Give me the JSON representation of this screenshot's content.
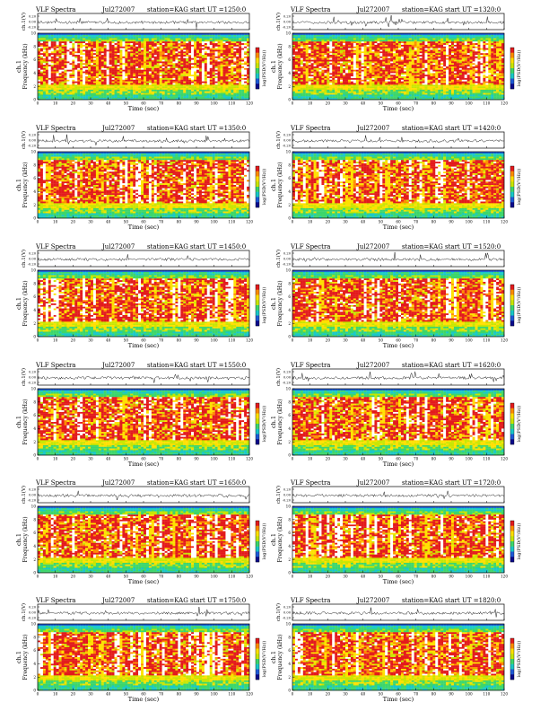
{
  "page": {
    "colors": {
      "background": "#ffffff",
      "colormap": [
        "#ffffff",
        "#e31a1c",
        "#ff8c00",
        "#ffe000",
        "#c8e600",
        "#3cd66b",
        "#18c8c8",
        "#1e5ad8",
        "#0a0a8c"
      ]
    }
  },
  "chart_data": [
    {
      "type": "heatmap",
      "title_left": "VLF Spectra",
      "date": "Jul272007",
      "station": "station=KAG",
      "start": "start  UT =1250:0",
      "xlabel": "Time  (sec)",
      "ylabel": "Frequency (kHz)",
      "ts_ylabel": "ch.1(V)",
      "ch_label": "ch.1",
      "cb_label": "log(PSD(V²/Hz))",
      "xlim": [
        0,
        120
      ],
      "ylim": [
        0,
        10
      ],
      "xticks": [
        "0",
        "10",
        "20",
        "30",
        "40",
        "50",
        "60",
        "70",
        "80",
        "90",
        "100",
        "110",
        "120"
      ],
      "yticks": [
        "0",
        "2",
        "4",
        "6",
        "8",
        "10"
      ],
      "ts_ticks": [
        "0.20",
        "0.00",
        "-0.20"
      ]
    },
    {
      "type": "heatmap",
      "title_left": "VLF Spectra",
      "date": "Jul272007",
      "station": "station=KAG",
      "start": "start  UT =1320:0",
      "xlabel": "Time  (sec)",
      "ylabel": "Frequency (kHz)",
      "ts_ylabel": "ch.1(V)",
      "ch_label": "ch.1",
      "cb_label": "log(PSD(V²/Hz))",
      "xlim": [
        0,
        120
      ],
      "ylim": [
        0,
        10
      ],
      "xticks": [
        "0",
        "10",
        "20",
        "30",
        "40",
        "50",
        "60",
        "70",
        "80",
        "90",
        "100",
        "110",
        "120"
      ],
      "yticks": [
        "0",
        "2",
        "4",
        "6",
        "8",
        "10"
      ],
      "ts_ticks": [
        "0.20",
        "0.00",
        "-0.20"
      ]
    },
    {
      "type": "heatmap",
      "title_left": "VLF Spectra",
      "date": "Jul272007",
      "station": "station=KAG",
      "start": "start  UT =1350:0",
      "xlabel": "Time  (sec)",
      "ylabel": "Frequency (kHz)",
      "ts_ylabel": "ch.1(V)",
      "ch_label": "ch.1",
      "cb_label": "log(PSD(V²/Hz))",
      "xlim": [
        0,
        120
      ],
      "ylim": [
        0,
        10
      ],
      "xticks": [
        "0",
        "10",
        "20",
        "30",
        "40",
        "50",
        "60",
        "70",
        "80",
        "90",
        "100",
        "110",
        "120"
      ],
      "yticks": [
        "0",
        "2",
        "4",
        "6",
        "8",
        "10"
      ],
      "ts_ticks": [
        "0.20",
        "0.00",
        "-0.20"
      ]
    },
    {
      "type": "heatmap",
      "title_left": "VLF Spectra",
      "date": "Jul272007",
      "station": "station=KAG",
      "start": "start  UT =1420:0",
      "xlabel": "Time  (sec)",
      "ylabel": "Frequency (kHz)",
      "ts_ylabel": "ch.1(V)",
      "ch_label": "ch.1",
      "cb_label": "log(PSD(V²/Hz))",
      "xlim": [
        0,
        120
      ],
      "ylim": [
        0,
        10
      ],
      "xticks": [
        "0",
        "10",
        "20",
        "30",
        "40",
        "50",
        "60",
        "70",
        "80",
        "90",
        "100",
        "110",
        "120"
      ],
      "yticks": [
        "0",
        "2",
        "4",
        "6",
        "8",
        "10"
      ],
      "ts_ticks": [
        "0.20",
        "0.00",
        "-0.20"
      ]
    },
    {
      "type": "heatmap",
      "title_left": "VLF Spectra",
      "date": "Jul272007",
      "station": "station=KAG",
      "start": "start  UT =1450:0",
      "xlabel": "Time  (sec)",
      "ylabel": "Frequency (kHz)",
      "ts_ylabel": "ch.1(V)",
      "ch_label": "ch.1",
      "cb_label": "log(PSD(V²/Hz))",
      "xlim": [
        0,
        120
      ],
      "ylim": [
        0,
        10
      ],
      "xticks": [
        "0",
        "10",
        "20",
        "30",
        "40",
        "50",
        "60",
        "70",
        "80",
        "90",
        "100",
        "110",
        "120"
      ],
      "yticks": [
        "0",
        "2",
        "4",
        "6",
        "8",
        "10"
      ],
      "ts_ticks": [
        "0.20",
        "0.00",
        "-0.20"
      ]
    },
    {
      "type": "heatmap",
      "title_left": "VLF Spectra",
      "date": "Jul272007",
      "station": "station=KAG",
      "start": "start  UT =1520:0",
      "xlabel": "Time  (sec)",
      "ylabel": "Frequency (kHz)",
      "ts_ylabel": "ch.1(V)",
      "ch_label": "ch.1",
      "cb_label": "log(PSD(V²/Hz))",
      "xlim": [
        0,
        120
      ],
      "ylim": [
        0,
        10
      ],
      "xticks": [
        "0",
        "10",
        "20",
        "30",
        "40",
        "50",
        "60",
        "70",
        "80",
        "90",
        "100",
        "110",
        "120"
      ],
      "yticks": [
        "0",
        "2",
        "4",
        "6",
        "8",
        "10"
      ],
      "ts_ticks": [
        "0.20",
        "0.00",
        "-0.20"
      ]
    },
    {
      "type": "heatmap",
      "title_left": "VLF Spectra",
      "date": "Jul272007",
      "station": "station=KAG",
      "start": "start  UT =1550:0",
      "xlabel": "Time  (sec)",
      "ylabel": "Frequency (kHz)",
      "ts_ylabel": "ch.1(V)",
      "ch_label": "ch.1",
      "cb_label": "log(PSD(V²/Hz))",
      "xlim": [
        0,
        120
      ],
      "ylim": [
        0,
        10
      ],
      "xticks": [
        "0",
        "10",
        "20",
        "30",
        "40",
        "50",
        "60",
        "70",
        "80",
        "90",
        "100",
        "110",
        "120"
      ],
      "yticks": [
        "0",
        "2",
        "4",
        "6",
        "8",
        "10"
      ],
      "ts_ticks": [
        "0.20",
        "0.00",
        "-0.20"
      ]
    },
    {
      "type": "heatmap",
      "title_left": "VLF Spectra",
      "date": "Jul272007",
      "station": "station=KAG",
      "start": "start  UT =1620:0",
      "xlabel": "Time  (sec)",
      "ylabel": "Frequency (kHz)",
      "ts_ylabel": "ch.1(V)",
      "ch_label": "ch.1",
      "cb_label": "log(PSD(V²/Hz))",
      "xlim": [
        0,
        120
      ],
      "ylim": [
        0,
        10
      ],
      "xticks": [
        "0",
        "10",
        "20",
        "30",
        "40",
        "50",
        "60",
        "70",
        "80",
        "90",
        "100",
        "110",
        "120"
      ],
      "yticks": [
        "0",
        "2",
        "4",
        "6",
        "8",
        "10"
      ],
      "ts_ticks": [
        "0.20",
        "0.00",
        "-0.20"
      ]
    },
    {
      "type": "heatmap",
      "title_left": "VLF Spectra",
      "date": "Jul272007",
      "station": "station=KAG",
      "start": "start  UT =1650:0",
      "xlabel": "Time  (sec)",
      "ylabel": "Frequency (kHz)",
      "ts_ylabel": "ch.1(V)",
      "ch_label": "ch.1",
      "cb_label": "log(PSD(V²/Hz))",
      "xlim": [
        0,
        120
      ],
      "ylim": [
        0,
        10
      ],
      "xticks": [
        "0",
        "10",
        "20",
        "30",
        "40",
        "50",
        "60",
        "70",
        "80",
        "90",
        "100",
        "110",
        "120"
      ],
      "yticks": [
        "0",
        "2",
        "4",
        "6",
        "8",
        "10"
      ],
      "ts_ticks": [
        "0.20",
        "0.00",
        "-0.20"
      ]
    },
    {
      "type": "heatmap",
      "title_left": "VLF Spectra",
      "date": "Jul272007",
      "station": "station=KAG",
      "start": "start  UT =1720:0",
      "xlabel": "Time  (sec)",
      "ylabel": "Frequency (kHz)",
      "ts_ylabel": "ch.1(V)",
      "ch_label": "ch.1",
      "cb_label": "log(PSD(V²/Hz))",
      "xlim": [
        0,
        120
      ],
      "ylim": [
        0,
        10
      ],
      "xticks": [
        "0",
        "10",
        "20",
        "30",
        "40",
        "50",
        "60",
        "70",
        "80",
        "90",
        "100",
        "110",
        "120"
      ],
      "yticks": [
        "0",
        "2",
        "4",
        "6",
        "8",
        "10"
      ],
      "ts_ticks": [
        "0.20",
        "0.00",
        "-0.20"
      ]
    },
    {
      "type": "heatmap",
      "title_left": "VLF Spectra",
      "date": "Jul272007",
      "station": "station=KAG",
      "start": "start  UT =1750:0",
      "xlabel": "Time  (sec)",
      "ylabel": "Frequency (kHz)",
      "ts_ylabel": "ch.1(V)",
      "ch_label": "ch.1",
      "cb_label": "log(PSD(V²/Hz))",
      "xlim": [
        0,
        120
      ],
      "ylim": [
        0,
        10
      ],
      "xticks": [
        "0",
        "10",
        "20",
        "30",
        "40",
        "50",
        "60",
        "70",
        "80",
        "90",
        "100",
        "110",
        "120"
      ],
      "yticks": [
        "0",
        "2",
        "4",
        "6",
        "8",
        "10"
      ],
      "ts_ticks": [
        "0.20",
        "0.00",
        "-0.20"
      ]
    },
    {
      "type": "heatmap",
      "title_left": "VLF Spectra",
      "date": "Jul272007",
      "station": "station=KAG",
      "start": "start  UT =1820:0",
      "xlabel": "Time  (sec)",
      "ylabel": "Frequency (kHz)",
      "ts_ylabel": "ch.1(V)",
      "ch_label": "ch.1",
      "cb_label": "log(PSD(V²/Hz))",
      "xlim": [
        0,
        120
      ],
      "ylim": [
        0,
        10
      ],
      "xticks": [
        "0",
        "10",
        "20",
        "30",
        "40",
        "50",
        "60",
        "70",
        "80",
        "90",
        "100",
        "110",
        "120"
      ],
      "yticks": [
        "0",
        "2",
        "4",
        "6",
        "8",
        "10"
      ],
      "ts_ticks": [
        "0.20",
        "0.00",
        "-0.20"
      ]
    }
  ]
}
